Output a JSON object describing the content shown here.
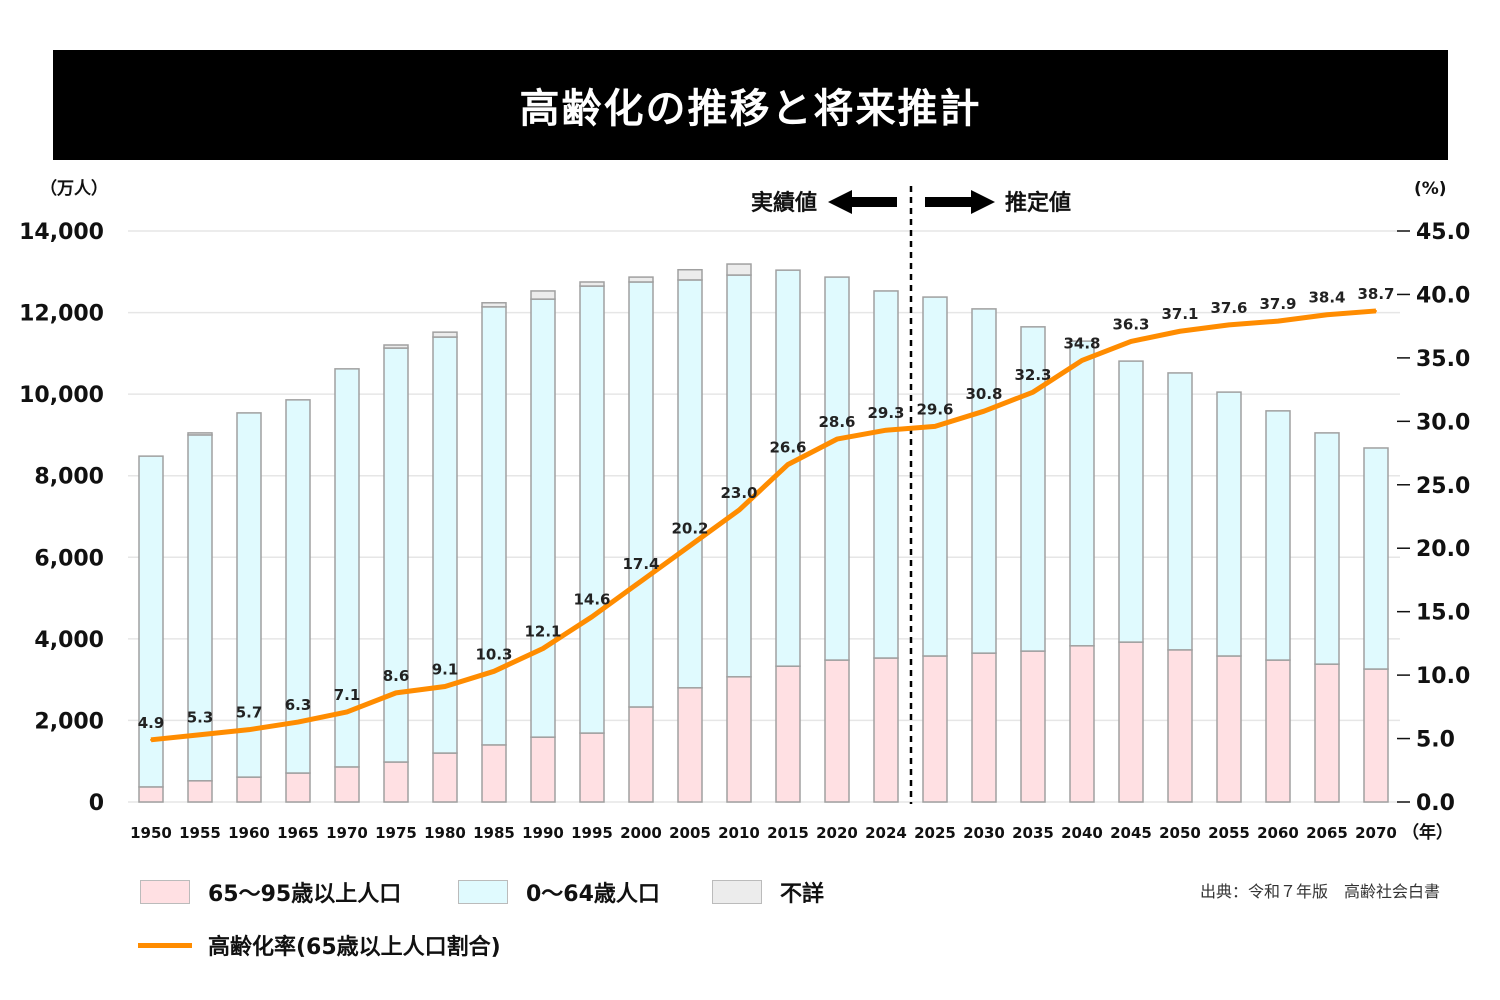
{
  "title": "高齢化の推移と将来推計",
  "chart_data": {
    "type": "bar",
    "stacked": true,
    "title": "高齢化の推移と将来推計",
    "ylabel_left": "（万人）",
    "ylabel_right": "(%)",
    "xlabel": "（年）",
    "ylim_left": [
      0,
      14000
    ],
    "ylim_right": [
      0,
      45
    ],
    "yticks_left": [
      "0",
      "2,000",
      "4,000",
      "6,000",
      "8,000",
      "10,000",
      "12,000",
      "14,000"
    ],
    "yticks_right": [
      "0.0",
      "5.0",
      "10.0",
      "15.0",
      "20.0",
      "25.0",
      "30.0",
      "35.0",
      "40.0",
      "45.0"
    ],
    "grid": true,
    "categories": [
      "1950",
      "1955",
      "1960",
      "1965",
      "1970",
      "1975",
      "1980",
      "1985",
      "1990",
      "1995",
      "2000",
      "2005",
      "2010",
      "2015",
      "2020",
      "2024",
      "2025",
      "2030",
      "2035",
      "2040",
      "2045",
      "2050",
      "2055",
      "2060",
      "2065",
      "2070"
    ],
    "series": [
      {
        "name": "65〜95歳以上人口",
        "color": "#ffe0e3",
        "values": [
          370,
          520,
          610,
          710,
          860,
          980,
          1200,
          1400,
          1590,
          1690,
          2330,
          2800,
          3070,
          3330,
          3480,
          3530,
          3580,
          3650,
          3700,
          3830,
          3920,
          3730,
          3580,
          3480,
          3380,
          3260
        ]
      },
      {
        "name": "0〜64歳人口",
        "color": "#e0fafe",
        "values": [
          8110,
          8480,
          8930,
          9150,
          9760,
          10150,
          10200,
          10740,
          10740,
          10960,
          10420,
          10000,
          9850,
          9710,
          9390,
          9000,
          8800,
          8440,
          7950,
          7470,
          6890,
          6790,
          6470,
          6110,
          5670,
          5420
        ]
      },
      {
        "name": "不詳",
        "color": "#ececec",
        "values": [
          0,
          50,
          0,
          0,
          0,
          75,
          120,
          100,
          200,
          100,
          120,
          250,
          270,
          0,
          0,
          0,
          0,
          0,
          0,
          0,
          0,
          0,
          0,
          0,
          0,
          0
        ]
      }
    ],
    "line": {
      "name": "高齢化率(65歳以上人口割合)",
      "color": "#ff8c00",
      "axis": "right",
      "values": [
        4.9,
        5.3,
        5.7,
        6.3,
        7.1,
        8.6,
        9.1,
        10.3,
        12.1,
        14.6,
        17.4,
        20.2,
        23.0,
        26.6,
        28.6,
        29.3,
        29.6,
        30.8,
        32.3,
        34.8,
        36.3,
        37.1,
        37.6,
        37.9,
        38.4,
        38.7
      ]
    },
    "annotations": {
      "actual": "実績値",
      "estimate": "推定値"
    }
  },
  "legend": {
    "elderly": "65〜95歳以上人口",
    "working": "0〜64歳人口",
    "unknown": "不詳",
    "rate": "高齢化率(65歳以上人口割合)"
  },
  "source": "出典：令和７年版　高齢社会白書"
}
